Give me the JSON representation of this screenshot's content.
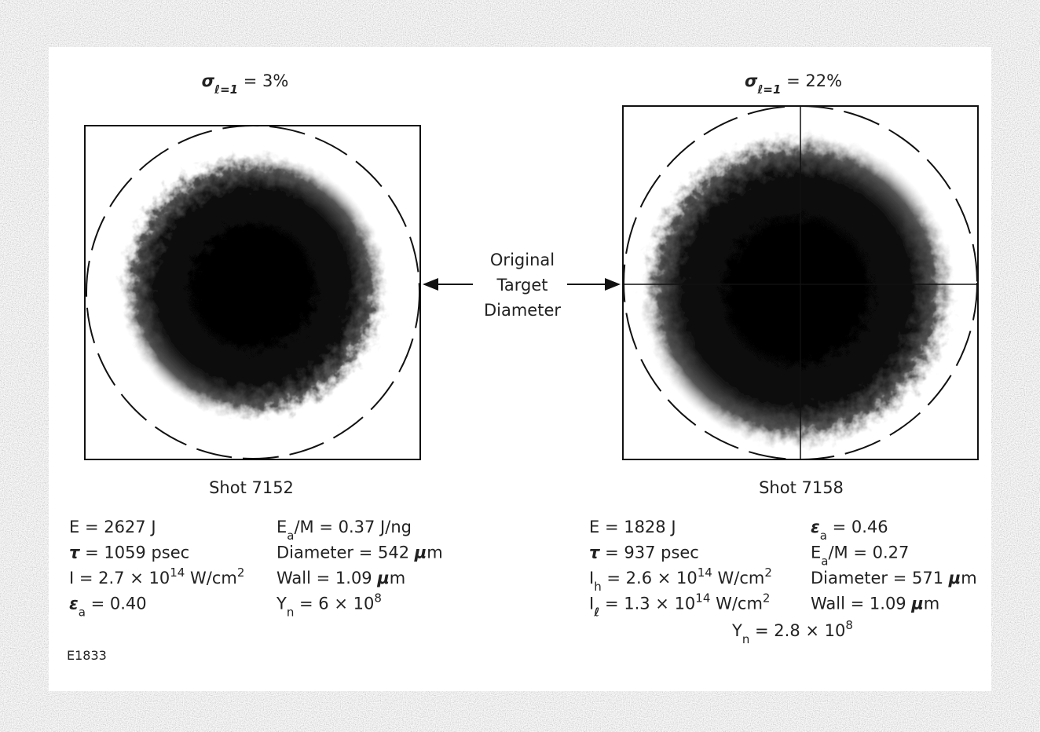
{
  "figure_id": "E1833",
  "arrow_label": [
    "Original",
    "Target",
    "Diameter"
  ],
  "panels": [
    {
      "title": [
        "σ",
        {
          "sub": "ℓ=1"
        },
        " = 3%"
      ],
      "shot": "Shot 7152",
      "columns": [
        [
          [
            "E = 2627 J"
          ],
          [
            "τ",
            " = 1059 psec"
          ],
          [
            "I = 2.7 × 10",
            {
              "sup": "14"
            },
            " W/cm",
            {
              "sup": "2"
            }
          ],
          [
            "ε",
            {
              "sub": "a"
            },
            " = 0.40"
          ]
        ],
        [
          [
            "E",
            {
              "sub": "a"
            },
            "/M = 0.37 J/ng"
          ],
          [
            "Diameter = 542 ",
            "μ",
            "m"
          ],
          [
            "Wall = 1.09 ",
            "μ",
            "m"
          ],
          [
            "Y",
            {
              "sub": "n"
            },
            " = 6 × 10",
            {
              "sup": "8"
            }
          ]
        ]
      ]
    },
    {
      "title": [
        "σ",
        {
          "sub": "ℓ=1"
        },
        " = 22%"
      ],
      "shot": "Shot 7158",
      "columns": [
        [
          [
            "E = 1828 J"
          ],
          [
            "τ",
            " = 937 psec"
          ],
          [
            "I",
            {
              "sub": "h"
            },
            " = 2.6 × 10",
            {
              "sup": "14"
            },
            " W/cm",
            {
              "sup": "2"
            }
          ],
          [
            "I",
            {
              "sub": "ℓ"
            },
            " = 1.3 × 10",
            {
              "sup": "14"
            },
            " W/cm",
            {
              "sup": "2"
            }
          ]
        ],
        [
          [
            "ε",
            {
              "sub": "a"
            },
            " = 0.46"
          ],
          [
            "E",
            {
              "sub": "a"
            },
            "/M = 0.27"
          ],
          [
            "Diameter = 571 ",
            "μ",
            "m"
          ],
          [
            "Wall = 1.09 ",
            "μ",
            "m"
          ]
        ]
      ],
      "extra": [
        "Y",
        {
          "sub": "n"
        },
        " = 2.8 × 10",
        {
          "sup": "8"
        }
      ]
    }
  ]
}
